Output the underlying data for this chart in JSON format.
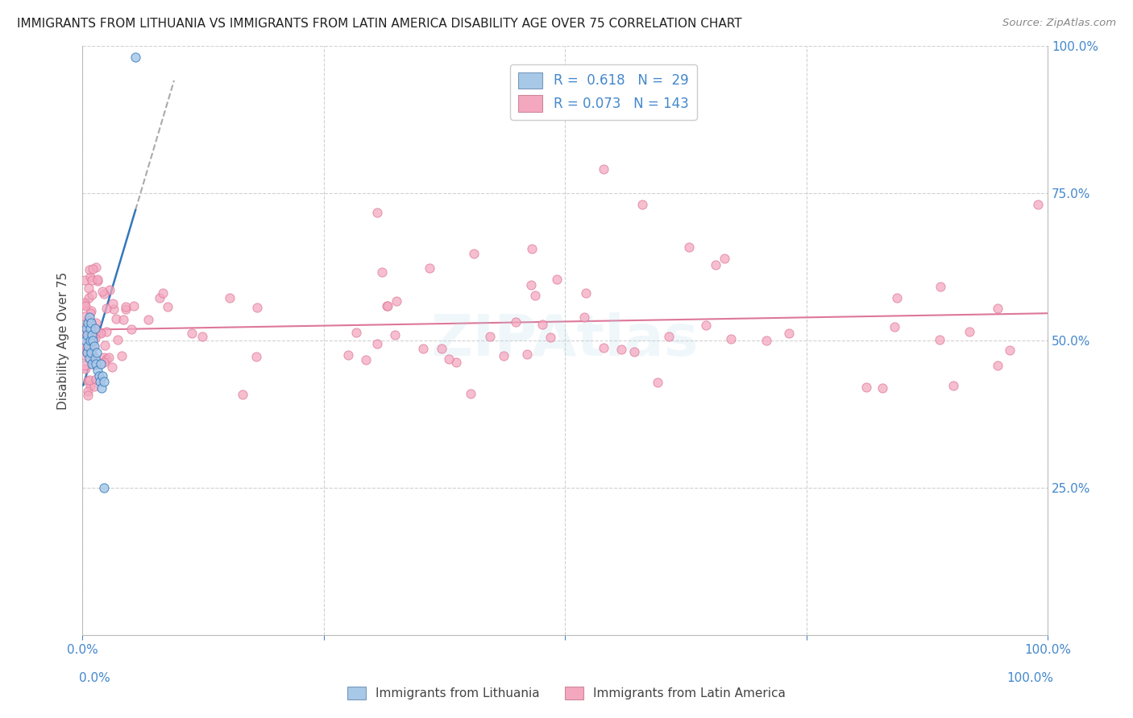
{
  "title": "IMMIGRANTS FROM LITHUANIA VS IMMIGRANTS FROM LATIN AMERICA DISABILITY AGE OVER 75 CORRELATION CHART",
  "source": "Source: ZipAtlas.com",
  "ylabel": "Disability Age Over 75",
  "xlim": [
    0,
    1.0
  ],
  "ylim": [
    0,
    1.0
  ],
  "color_lithuania": "#a8c8e8",
  "color_latin": "#f4a8c0",
  "color_blue_text": "#4488cc",
  "trendline_lithuania_color": "#3377bb",
  "trendline_latin_color": "#dd7799",
  "background_color": "#ffffff",
  "grid_color": "#cccccc",
  "lith_r": 0.618,
  "lith_n": 29,
  "lat_r": 0.073,
  "lat_n": 143
}
